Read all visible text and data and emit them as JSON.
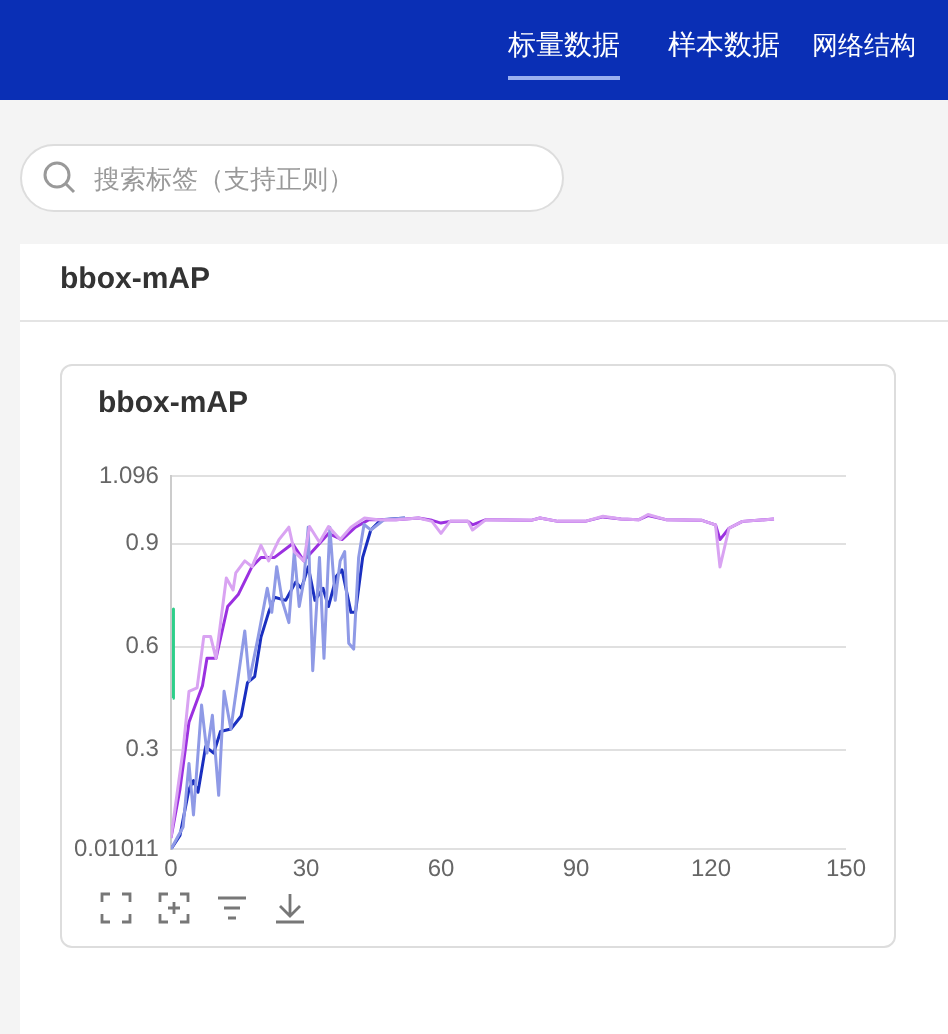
{
  "chart_data": {
    "type": "line",
    "title": "bbox-mAP",
    "annotations": [
      "标量数据",
      "样本数据",
      "网络结构",
      "搜索标签（支持正则）",
      "bbox-mAP"
    ],
    "xlim": [
      0,
      150
    ],
    "xticks": [
      0,
      30,
      60,
      90,
      120,
      150
    ],
    "ylim": [
      0.01011,
      1.096
    ],
    "yticks": [
      0.01011,
      0.3,
      0.6,
      0.9,
      1.096
    ],
    "grid": "y",
    "legend": false,
    "series": [
      {
        "color": "#d9a3f2",
        "x": [
          0,
          2.7,
          4,
          5.8,
          7.3,
          8.8,
          10,
          12.3,
          13.8,
          14.4,
          16.4,
          18,
          20,
          21.7,
          24,
          26.2,
          27.4,
          29.5,
          30.8,
          33,
          35,
          37.6,
          40,
          43,
          46,
          50,
          55,
          58,
          60,
          62,
          66,
          67,
          70,
          80,
          82,
          86,
          92,
          96,
          100,
          104,
          106,
          110,
          118,
          121,
          122,
          124,
          127,
          134
        ],
        "values": [
          0.043,
          0.3,
          0.47,
          0.48,
          0.63,
          0.63,
          0.566,
          0.8,
          0.765,
          0.815,
          0.85,
          0.833,
          0.895,
          0.85,
          0.912,
          0.948,
          0.877,
          0.85,
          0.95,
          0.904,
          0.95,
          0.912,
          0.948,
          0.975,
          0.97,
          0.97,
          0.975,
          0.965,
          0.93,
          0.965,
          0.965,
          0.94,
          0.97,
          0.968,
          0.975,
          0.965,
          0.965,
          0.98,
          0.972,
          0.97,
          0.985,
          0.97,
          0.968,
          0.955,
          0.832,
          0.945,
          0.965,
          0.972
        ]
      },
      {
        "color": "#8f9ae6",
        "x": [
          0,
          2.7,
          4,
          5,
          6.8,
          8,
          9.2,
          10.6,
          11.8,
          13.3,
          16.4,
          17.4,
          19.4,
          21.4,
          22.4,
          23.5,
          24.7,
          26.2,
          27.4,
          28.5,
          29.5,
          30.5,
          31.5,
          33,
          34,
          35.3,
          36.5,
          37.6,
          38.6,
          39.5,
          40.6,
          41.7,
          42.9,
          44.4,
          47.4,
          52
        ],
        "values": [
          0.01011,
          0.075,
          0.26,
          0.11,
          0.43,
          0.29,
          0.4,
          0.167,
          0.47,
          0.36,
          0.646,
          0.5,
          0.63,
          0.77,
          0.7,
          0.833,
          0.735,
          0.67,
          0.877,
          0.717,
          0.79,
          0.948,
          0.53,
          0.86,
          0.566,
          0.948,
          0.735,
          0.85,
          0.877,
          0.61,
          0.593,
          0.86,
          0.956,
          0.94,
          0.97,
          0.975
        ]
      },
      {
        "color": "#9b30e0",
        "x": [
          0,
          2,
          4,
          7,
          8,
          10,
          12.6,
          15,
          18,
          20,
          23,
          27,
          29.5,
          32,
          35,
          38,
          41,
          44,
          50,
          55,
          58,
          60,
          62,
          66,
          67,
          70,
          80,
          82,
          86,
          92,
          96,
          100,
          104,
          106,
          110,
          118,
          121,
          122,
          124,
          127,
          134
        ],
        "values": [
          0.043,
          0.185,
          0.38,
          0.486,
          0.566,
          0.566,
          0.717,
          0.753,
          0.833,
          0.86,
          0.86,
          0.9,
          0.85,
          0.886,
          0.93,
          0.912,
          0.948,
          0.97,
          0.97,
          0.975,
          0.968,
          0.96,
          0.965,
          0.965,
          0.955,
          0.97,
          0.968,
          0.975,
          0.965,
          0.965,
          0.978,
          0.972,
          0.97,
          0.982,
          0.97,
          0.968,
          0.955,
          0.912,
          0.945,
          0.965,
          0.972
        ]
      },
      {
        "color": "#1a2fc0",
        "x": [
          0,
          2,
          4,
          5,
          6,
          7.7,
          9.5,
          11,
          13.3,
          15.6,
          17,
          18.6,
          20,
          21.7,
          23,
          25.5,
          27.7,
          29,
          30.5,
          32,
          33.8,
          35,
          36.8,
          38,
          40,
          41,
          42.6,
          44.4,
          46.7,
          52
        ],
        "values": [
          0.01011,
          0.05,
          0.185,
          0.21,
          0.176,
          0.309,
          0.29,
          0.353,
          0.36,
          0.398,
          0.495,
          0.513,
          0.628,
          0.7,
          0.744,
          0.735,
          0.788,
          0.77,
          0.833,
          0.735,
          0.77,
          0.717,
          0.806,
          0.824,
          0.7,
          0.7,
          0.86,
          0.94,
          0.97,
          0.975
        ]
      },
      {
        "color": "#2ecf8a",
        "x": [
          0.4,
          0.5,
          0.6
        ],
        "values": [
          0.45,
          0.71,
          0.61
        ]
      }
    ]
  }
}
